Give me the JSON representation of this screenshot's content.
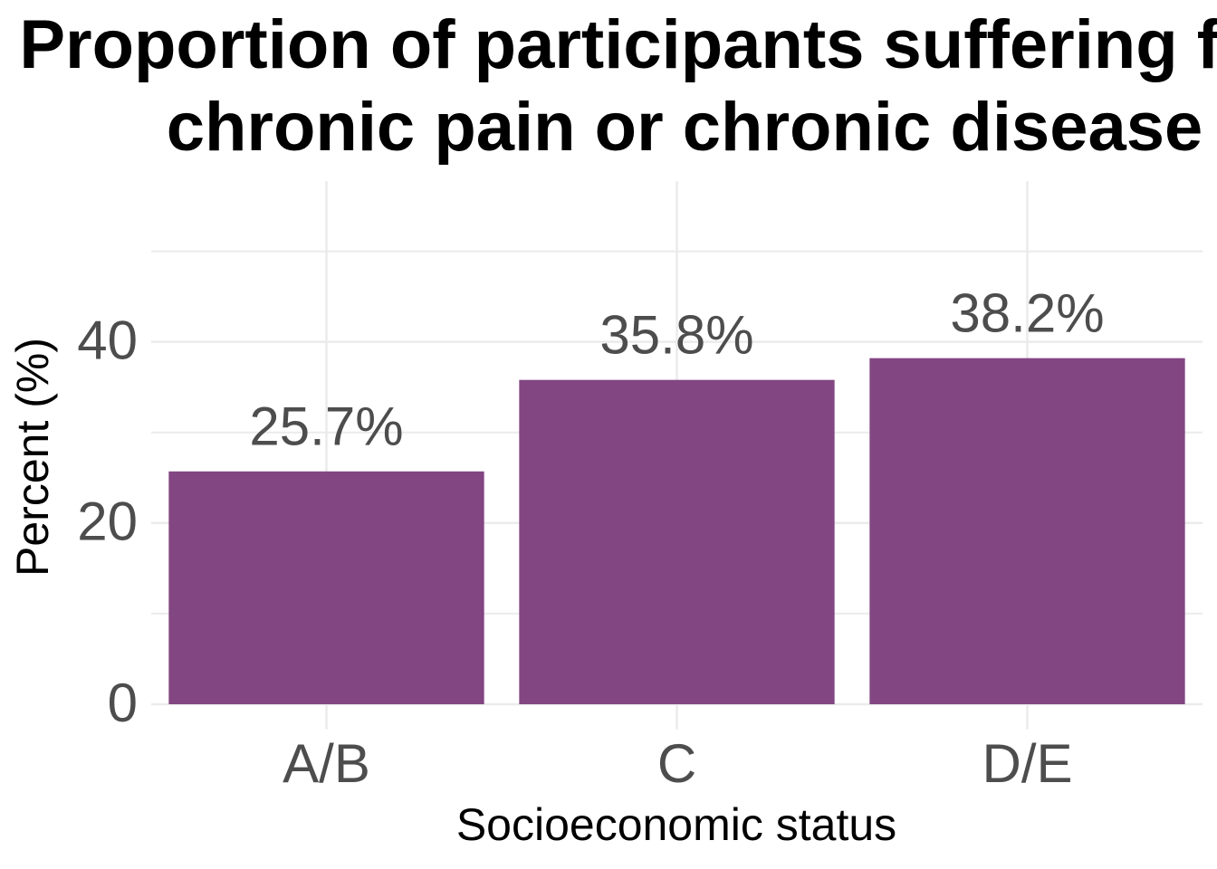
{
  "chart_data": {
    "type": "bar",
    "title": "Proportion of participants suffering from\nchronic pain or chronic disease",
    "x_label": "Socioeconomic status",
    "y_label": "Percent (%)",
    "categories": [
      "A/B",
      "C",
      "D/E"
    ],
    "values": [
      25.7,
      35.8,
      38.2
    ],
    "value_labels": [
      "25.7%",
      "35.8%",
      "38.2%"
    ],
    "color": "#824682",
    "ylim": [
      -2.75,
      57.75
    ],
    "yticks": [
      0,
      20,
      40
    ],
    "minor_yticks": [
      10,
      30,
      50
    ],
    "grid": true
  }
}
